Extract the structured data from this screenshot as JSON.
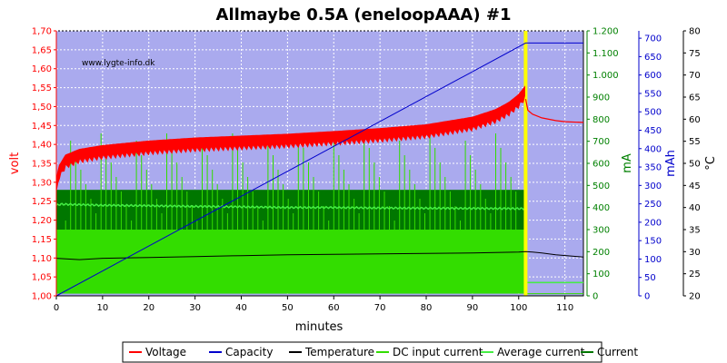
{
  "chart_data": {
    "type": "line",
    "title": "Allmaybe 0.5A (eneloopAAA) #1",
    "watermark": "www.lygte-info.dk",
    "xlabel": "minutes",
    "xlim": [
      0,
      114
    ],
    "xticks": [
      0,
      10,
      20,
      30,
      40,
      50,
      60,
      70,
      80,
      90,
      100,
      110
    ],
    "grid": true,
    "legend_position": "bottom",
    "axes": {
      "volt": {
        "label": "volt",
        "color": "#ff0000",
        "range": [
          1.0,
          1.7
        ],
        "ticks": [
          "1,00",
          "1,05",
          "1,10",
          "1,15",
          "1,20",
          "1,25",
          "1,30",
          "1,35",
          "1,40",
          "1,45",
          "1,50",
          "1,55",
          "1,60",
          "1,65",
          "1,70"
        ]
      },
      "mA": {
        "label": "mA",
        "color": "#008000",
        "range": [
          0,
          1200
        ],
        "ticks": [
          "0",
          "100",
          "200",
          "300",
          "400",
          "500",
          "600",
          "700",
          "800",
          "900",
          "1.000",
          "1.100",
          "1.200"
        ]
      },
      "mAh": {
        "label": "mAh",
        "color": "#0000cc",
        "range": [
          0,
          720
        ],
        "ticks": [
          "0",
          "50",
          "100",
          "150",
          "200",
          "250",
          "300",
          "350",
          "400",
          "450",
          "500",
          "550",
          "600",
          "650",
          "700"
        ]
      },
      "temp": {
        "label": "°C",
        "color": "#000000",
        "range": [
          20,
          80
        ],
        "ticks": [
          "20",
          "25",
          "30",
          "35",
          "40",
          "45",
          "50",
          "55",
          "60",
          "65",
          "70",
          "75",
          "80"
        ]
      }
    },
    "charge_end_marker_x": 101.5,
    "series": [
      {
        "name": "Voltage",
        "color": "#ff0000",
        "axis": "volt",
        "x": [
          0,
          0.5,
          2,
          5,
          10,
          20,
          30,
          40,
          50,
          60,
          70,
          80,
          85,
          90,
          95,
          98,
          100,
          101.3,
          101.5,
          102,
          103,
          105,
          108,
          110,
          114
        ],
        "y": [
          1.29,
          1.33,
          1.36,
          1.375,
          1.385,
          1.397,
          1.405,
          1.41,
          1.415,
          1.422,
          1.43,
          1.44,
          1.45,
          1.46,
          1.48,
          1.5,
          1.52,
          1.54,
          1.52,
          1.49,
          1.48,
          1.47,
          1.463,
          1.46,
          1.458
        ]
      },
      {
        "name": "Capacity",
        "color": "#0000cc",
        "axis": "mAh",
        "x": [
          0,
          101.5,
          114
        ],
        "y": [
          0,
          687,
          687
        ]
      },
      {
        "name": "Temperature",
        "color": "#000000",
        "axis": "temp",
        "x": [
          0,
          5,
          10,
          20,
          30,
          40,
          50,
          60,
          70,
          80,
          90,
          95,
          100,
          101.5,
          103,
          105,
          108,
          114
        ],
        "y": [
          28.5,
          28.2,
          28.5,
          28.7,
          28.9,
          29.1,
          29.3,
          29.4,
          29.5,
          29.6,
          29.7,
          29.8,
          29.9,
          30.0,
          29.9,
          29.7,
          29.3,
          28.8
        ]
      },
      {
        "name": "DC input current",
        "color": "#33dd00",
        "axis": "mA",
        "x": [
          0,
          1,
          101.5,
          102,
          114
        ],
        "y": [
          170,
          170,
          170,
          10,
          10
        ],
        "low": 10,
        "high": 300
      },
      {
        "name": "Average current",
        "color": "#44ee44",
        "axis": "mA",
        "x": [
          0,
          1,
          10,
          20,
          30,
          40,
          50,
          60,
          70,
          80,
          90,
          100,
          101.5,
          102,
          114
        ],
        "y": [
          410,
          415,
          410,
          408,
          405,
          403,
          400,
          400,
          398,
          397,
          396,
          395,
          395,
          60,
          60
        ]
      },
      {
        "name": "Current",
        "color": "#007700",
        "axis": "mA",
        "x": [
          0,
          1,
          101.5,
          102,
          114
        ],
        "y": [
          400,
          400,
          400,
          60,
          60
        ],
        "low": 300,
        "high": 480
      }
    ]
  }
}
